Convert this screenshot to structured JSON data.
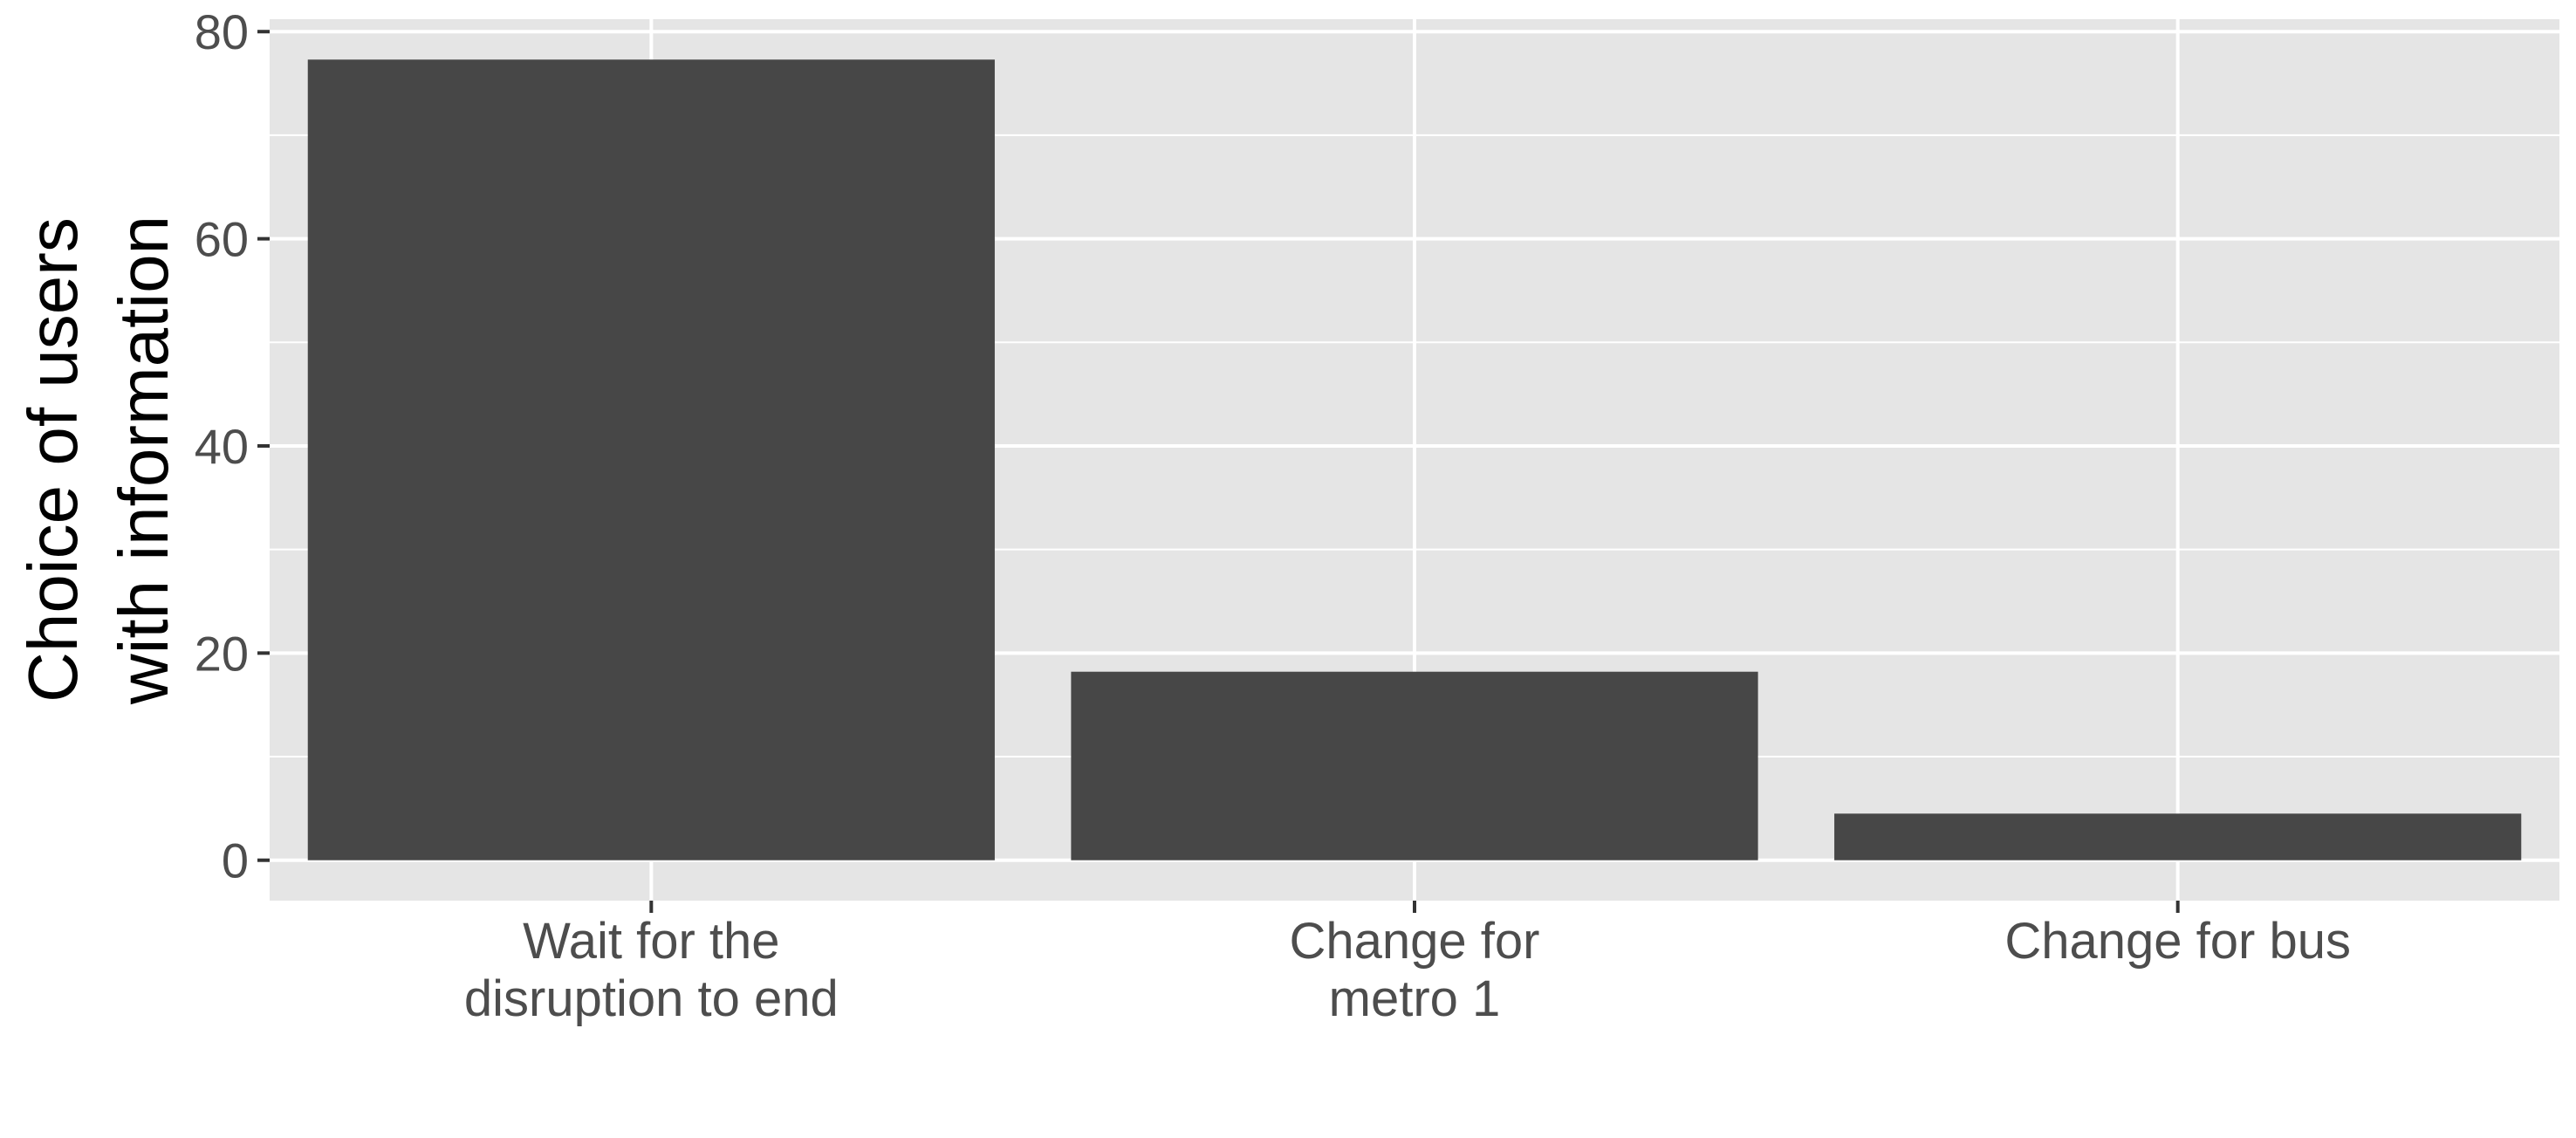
{
  "chart_data": {
    "type": "bar",
    "title": "",
    "xlabel": "",
    "ylabel": "Choice of users with information",
    "ylabel_lines": [
      "Choice of users",
      "with information"
    ],
    "categories": [
      [
        "Wait for the",
        "disruption to end"
      ],
      [
        "Change for",
        "metro 1"
      ],
      [
        "Change for bus"
      ]
    ],
    "values": [
      77.3,
      18.2,
      4.5
    ],
    "ylim": [
      -3.9,
      81.2
    ],
    "yticks": [
      0,
      20,
      40,
      60,
      80
    ],
    "ytick_labels": [
      "0",
      "20",
      "40",
      "60",
      "80"
    ],
    "grid": true,
    "legend": "none",
    "colors": {
      "bar": "#474747",
      "panel": "#e5e5e5",
      "grid": "#ffffff",
      "tick": "#333333"
    }
  }
}
